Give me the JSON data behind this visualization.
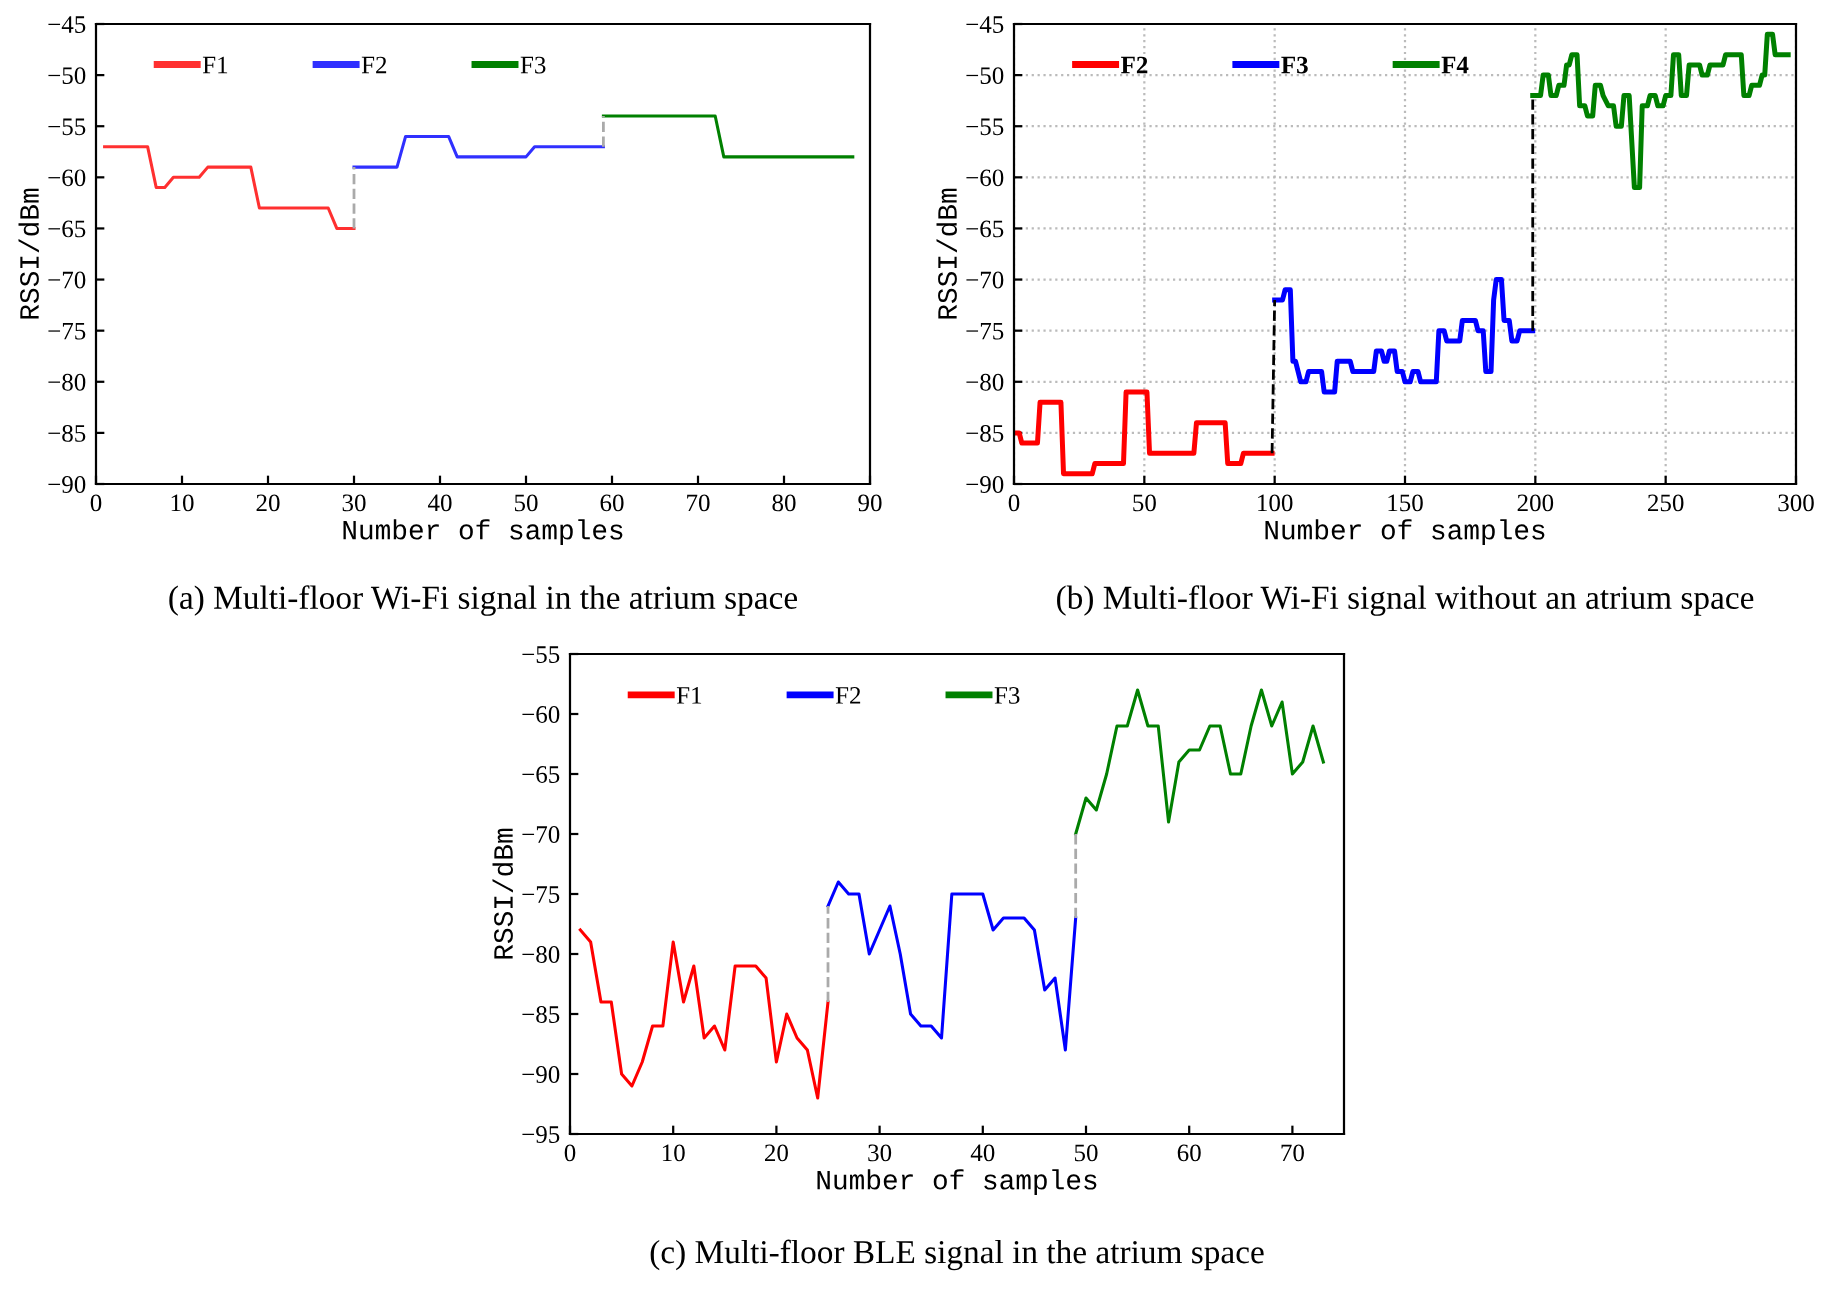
{
  "chart_data": [
    {
      "type": "line",
      "xlabel": "Number of samples",
      "ylabel": "RSSI/dBm",
      "xlim": [
        0,
        90
      ],
      "xticks": [
        0,
        10,
        20,
        30,
        40,
        50,
        60,
        70,
        80,
        90
      ],
      "ylim": [
        -90,
        -45
      ],
      "yticks": [
        -90,
        -85,
        -80,
        -75,
        -70,
        -65,
        -60,
        -55,
        -50,
        -45
      ],
      "grid": false,
      "legend": "top left",
      "line_style": "solid",
      "annotations": [
        "(a) Multi-floor Wi-Fi signal in the atrium space"
      ],
      "series": [
        {
          "name": "F1",
          "color": "#ff3030",
          "x": [
            1,
            6,
            7,
            8,
            9,
            12,
            13,
            18,
            19,
            27,
            28,
            30
          ],
          "values": [
            -57,
            -57,
            -61,
            -61,
            -60,
            -60,
            -59,
            -59,
            -63,
            -63,
            -65,
            -65
          ]
        },
        {
          "name": "F2",
          "color": "#3030ff",
          "x": [
            30,
            35,
            36,
            41,
            42,
            50,
            51,
            59
          ],
          "values": [
            -59,
            -59,
            -56,
            -56,
            -58,
            -58,
            -57,
            -57
          ]
        },
        {
          "name": "F3",
          "color": "#008000",
          "x": [
            59,
            72,
            73,
            88
          ],
          "values": [
            -54,
            -54,
            -58,
            -58
          ]
        },
        {
          "color": "#aaaaaa",
          "line_style": "dashed",
          "x": [
            30,
            30
          ],
          "values": [
            -65,
            -59
          ]
        },
        {
          "color": "#aaaaaa",
          "line_style": "dashed",
          "x": [
            59,
            59
          ],
          "values": [
            -57,
            -54
          ]
        }
      ]
    },
    {
      "type": "line",
      "xlabel": "Number of samples",
      "ylabel": "RSSI/dBm",
      "xlim": [
        0,
        300
      ],
      "xticks": [
        0,
        50,
        100,
        150,
        200,
        250,
        300
      ],
      "ylim": [
        -90,
        -45
      ],
      "yticks": [
        -90,
        -85,
        -80,
        -75,
        -70,
        -65,
        -60,
        -55,
        -50,
        -45
      ],
      "grid": true,
      "legend": "top left",
      "line_style": "solid",
      "annotations": [
        "(b) Multi-floor Wi-Fi signal without an atrium space"
      ],
      "series": [
        {
          "name": "F2",
          "color": "#ff0000",
          "x": [
            0,
            2,
            3,
            9,
            10,
            18,
            19,
            30,
            31,
            42,
            43,
            51,
            52,
            69,
            70,
            81,
            82,
            87,
            88,
            99
          ],
          "values": [
            -85,
            -85,
            -86,
            -86,
            -82,
            -82,
            -89,
            -89,
            -88,
            -88,
            -81,
            -81,
            -87,
            -87,
            -84,
            -84,
            -88,
            -88,
            -87,
            -87
          ]
        },
        {
          "name": "F3",
          "color": "#0000ff",
          "x": [
            100,
            103,
            104,
            106,
            107,
            108,
            110,
            112,
            113,
            118,
            119,
            123,
            124,
            129,
            130,
            138,
            139,
            141,
            142,
            143,
            144,
            146,
            147,
            149,
            150,
            152,
            153,
            155,
            156,
            162,
            163,
            165,
            166,
            171,
            172,
            177,
            178,
            180,
            181,
            183,
            184,
            185,
            187,
            188,
            190,
            191,
            193,
            194,
            199
          ],
          "values": [
            -72,
            -72,
            -71,
            -71,
            -78,
            -78,
            -80,
            -80,
            -79,
            -79,
            -81,
            -81,
            -78,
            -78,
            -79,
            -79,
            -77,
            -77,
            -78,
            -78,
            -77,
            -77,
            -79,
            -79,
            -80,
            -80,
            -79,
            -79,
            -80,
            -80,
            -75,
            -75,
            -76,
            -76,
            -74,
            -74,
            -75,
            -75,
            -79,
            -79,
            -72,
            -70,
            -70,
            -74,
            -74,
            -76,
            -76,
            -75,
            -75
          ]
        },
        {
          "name": "F4",
          "color": "#008000",
          "x": [
            199,
            202,
            203,
            205,
            206,
            208,
            209,
            211,
            212,
            213,
            214,
            216,
            217,
            219,
            220,
            222,
            223,
            225,
            226,
            228,
            230,
            231,
            233,
            234,
            236,
            238,
            240,
            241,
            243,
            244,
            246,
            247,
            249,
            250,
            252,
            253,
            255,
            256,
            258,
            259,
            263,
            264,
            266,
            267,
            272,
            273,
            279,
            280,
            282,
            283,
            286,
            287,
            288,
            289,
            291,
            292,
            297
          ],
          "values": [
            -52,
            -52,
            -50,
            -50,
            -52,
            -52,
            -51,
            -51,
            -49,
            -49,
            -48,
            -48,
            -53,
            -53,
            -54,
            -54,
            -51,
            -51,
            -52,
            -53,
            -53,
            -55,
            -55,
            -52,
            -52,
            -61,
            -61,
            -53,
            -53,
            -52,
            -52,
            -53,
            -53,
            -52,
            -52,
            -48,
            -48,
            -52,
            -52,
            -49,
            -49,
            -50,
            -50,
            -49,
            -49,
            -48,
            -48,
            -52,
            -52,
            -51,
            -51,
            -50,
            -50,
            -46,
            -46,
            -48,
            -48
          ]
        },
        {
          "color": "#000000",
          "line_style": "dashed",
          "x": [
            99,
            100
          ],
          "values": [
            -87,
            -72
          ]
        },
        {
          "color": "#000000",
          "line_style": "dashed",
          "x": [
            199,
            199
          ],
          "values": [
            -75,
            -52
          ]
        }
      ]
    },
    {
      "type": "line",
      "xlabel": "Number of samples",
      "ylabel": "RSSI/dBm",
      "xlim": [
        0,
        75
      ],
      "xticks": [
        0,
        10,
        20,
        30,
        40,
        50,
        60,
        70
      ],
      "ylim": [
        -95,
        -55
      ],
      "yticks": [
        -95,
        -90,
        -85,
        -80,
        -75,
        -70,
        -65,
        -60,
        -55
      ],
      "grid": false,
      "legend": "top left",
      "line_style": "solid",
      "annotations": [
        "(c) Multi-floor BLE signal in the atrium space"
      ],
      "series": [
        {
          "name": "F1",
          "color": "#ff0000",
          "x": [
            1,
            2,
            3,
            4,
            5,
            6,
            7,
            8,
            9,
            10,
            11,
            12,
            13,
            14,
            15,
            16,
            17,
            18,
            19,
            20,
            21,
            22,
            23,
            24,
            25
          ],
          "values": [
            -78,
            -79,
            -84,
            -84,
            -90,
            -91,
            -89,
            -86,
            -86,
            -79,
            -84,
            -81,
            -87,
            -86,
            -88,
            -81,
            -81,
            -81,
            -82,
            -89,
            -85,
            -87,
            -88,
            -92,
            -84
          ]
        },
        {
          "name": "F2",
          "color": "#0000ff",
          "x": [
            25,
            26,
            27,
            28,
            29,
            30,
            31,
            32,
            33,
            34,
            35,
            36,
            37,
            38,
            39,
            40,
            41,
            42,
            43,
            44,
            45,
            46,
            47,
            48,
            49
          ],
          "values": [
            -76,
            -74,
            -75,
            -75,
            -80,
            -78,
            -76,
            -80,
            -85,
            -86,
            -86,
            -87,
            -75,
            -75,
            -75,
            -75,
            -78,
            -77,
            -77,
            -77,
            -78,
            -83,
            -82,
            -88,
            -77
          ]
        },
        {
          "name": "F3",
          "color": "#008000",
          "x": [
            49,
            50,
            51,
            52,
            53,
            54,
            55,
            56,
            57,
            58,
            59,
            60,
            61,
            62,
            63,
            64,
            65,
            66,
            67,
            68,
            69,
            70,
            71,
            72,
            73
          ],
          "values": [
            -70,
            -67,
            -68,
            -65,
            -61,
            -61,
            -58,
            -61,
            -61,
            -69,
            -64,
            -63,
            -63,
            -61,
            -61,
            -65,
            -65,
            -61,
            -58,
            -61,
            -59,
            -65,
            -64,
            -61,
            -64
          ]
        },
        {
          "color": "#aaaaaa",
          "line_style": "dashed",
          "x": [
            25,
            25
          ],
          "values": [
            -84,
            -76
          ]
        },
        {
          "color": "#aaaaaa",
          "line_style": "dashed",
          "x": [
            49,
            49
          ],
          "values": [
            -77,
            -70
          ]
        }
      ]
    }
  ]
}
